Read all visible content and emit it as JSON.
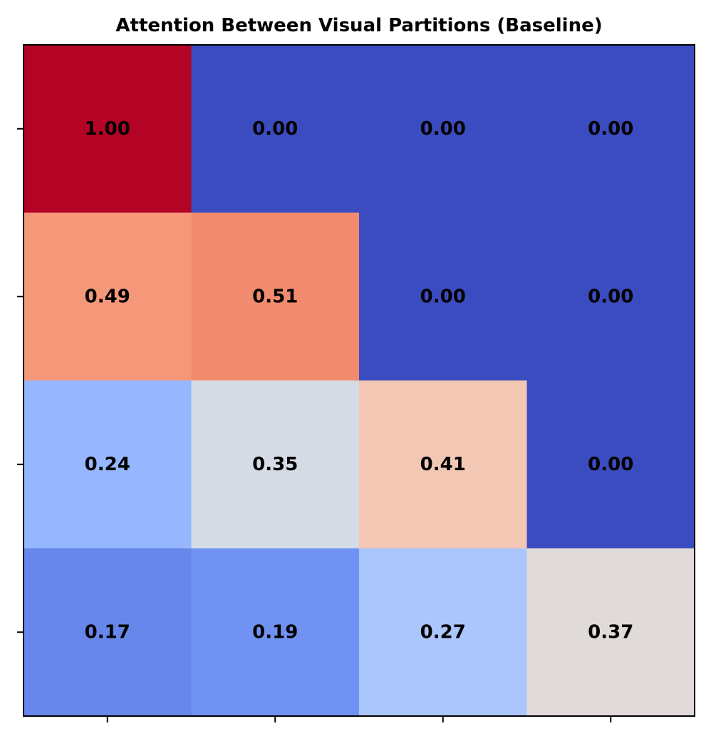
{
  "chart_data": {
    "type": "heatmap",
    "title": "Attention Between Visual Partitions (Baseline)",
    "xlabel": "",
    "ylabel": "",
    "colormap": "coolwarm",
    "value_range": [
      0,
      1
    ],
    "rows": 4,
    "cols": 4,
    "values": [
      [
        1.0,
        0.0,
        0.0,
        0.0
      ],
      [
        0.49,
        0.51,
        0.0,
        0.0
      ],
      [
        0.24,
        0.35,
        0.41,
        0.0
      ],
      [
        0.17,
        0.19,
        0.27,
        0.37
      ]
    ],
    "labels": [
      [
        "1.00",
        "0.00",
        "0.00",
        "0.00"
      ],
      [
        "0.49",
        "0.51",
        "0.00",
        "0.00"
      ],
      [
        "0.24",
        "0.35",
        "0.41",
        "0.00"
      ],
      [
        "0.17",
        "0.19",
        "0.27",
        "0.37"
      ]
    ],
    "colors": [
      [
        "#b40426",
        "#3b4cc0",
        "#3b4cc0",
        "#3b4cc0"
      ],
      [
        "#f59879",
        "#f08b6e",
        "#3b4cc0",
        "#3b4cc0"
      ],
      [
        "#96b7ff",
        "#d5dbe5",
        "#f2c8b4",
        "#3b4cc0"
      ],
      [
        "#6788ea",
        "#7093f3",
        "#abc5fd",
        "#e0dbd8"
      ]
    ],
    "x_tick_labels": [
      "",
      "",
      "",
      ""
    ],
    "y_tick_labels": [
      "",
      "",
      "",
      ""
    ],
    "grid": false,
    "colorbar": false
  }
}
